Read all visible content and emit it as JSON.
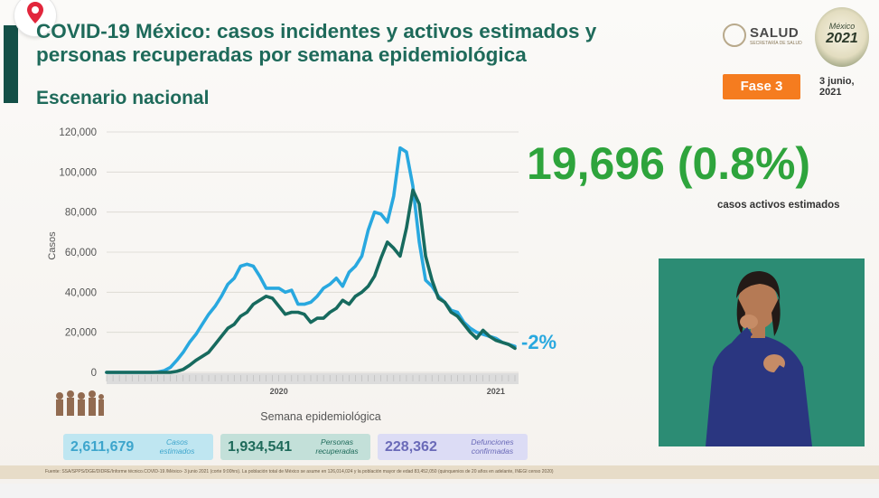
{
  "header": {
    "title": "COVID-19 México: casos incidentes y activos estimados y personas recuperadas por semana epidemiológica",
    "subtitle": "Escenario nacional",
    "org": "SALUD",
    "org_sub": "SECRETARÍA DE SALUD",
    "logo_top": "México",
    "logo_year": "2021",
    "phase": "Fase 3",
    "date": "3 junio, 2021"
  },
  "highlight": {
    "value": "19,696 (0.8%)",
    "label": "casos activos estimados"
  },
  "stats": [
    {
      "value": "2,611,679",
      "label": "Casos estimados",
      "color": "#bfe6f1",
      "text_color": "#3da5cc"
    },
    {
      "value": "1,934,541",
      "label": "Personas recuperadas",
      "color": "#c3e0d9",
      "text_color": "#1e6a5a"
    },
    {
      "value": "228,362",
      "label": "Defunciones confirmadas",
      "color": "#dcdcf5",
      "text_color": "#6a6ab8"
    }
  ],
  "footer": "Fuente: SSA/SPPS/DGE/DIDRE/Informe técnico.COVID-19 /México- 3 junio 2021 (corte 9:00hrs). La población total de México se asume en 126,014,024 y la población mayor de edad 83,452,050 (quinquenios de 20 años en adelante, INEGI censo 2020)",
  "chart_data": {
    "type": "line",
    "xlabel": "Semana epidemiológica",
    "ylabel": "Casos",
    "ylim": [
      0,
      120000
    ],
    "yticks": [
      "0",
      "20,000",
      "40,000",
      "60,000",
      "80,000",
      "100,000",
      "120,000"
    ],
    "xtick_labels": [
      {
        "label": "2020",
        "week": 27
      },
      {
        "label": "2021",
        "week": 61
      }
    ],
    "grid": true,
    "change_label": "-2%",
    "colors": {
      "estimated": "#29a8df",
      "recovered": "#176a5e"
    },
    "series": [
      {
        "key": "estimated",
        "values": [
          0,
          0,
          0,
          0,
          0,
          0,
          0,
          0,
          200,
          800,
          2500,
          6000,
          10000,
          15000,
          19000,
          24000,
          29000,
          33000,
          38000,
          44000,
          47000,
          53000,
          54000,
          53000,
          48000,
          42000,
          42000,
          42000,
          40000,
          41000,
          34000,
          34000,
          35000,
          38000,
          42000,
          44000,
          47000,
          43000,
          50000,
          53000,
          58000,
          71000,
          80000,
          79000,
          75000,
          88000,
          112000,
          110000,
          93000,
          65000,
          46000,
          43000,
          38000,
          35000,
          31000,
          30000,
          25000,
          22000,
          20000,
          19000,
          18000,
          17000,
          15000,
          14000,
          13000
        ]
      },
      {
        "key": "recovered",
        "values": [
          0,
          0,
          0,
          0,
          0,
          0,
          0,
          0,
          0,
          0,
          0,
          500,
          1500,
          3500,
          6000,
          8000,
          10000,
          14000,
          18000,
          22000,
          24000,
          28000,
          30000,
          34000,
          36000,
          38000,
          37000,
          33000,
          29000,
          30000,
          30000,
          29000,
          25000,
          27000,
          27000,
          30000,
          32000,
          36000,
          34000,
          38000,
          40000,
          43000,
          48000,
          57000,
          65000,
          62000,
          58000,
          72000,
          91000,
          84000,
          58000,
          46000,
          37000,
          35000,
          30000,
          28000,
          24000,
          20000,
          17000,
          21000,
          18000,
          16000,
          15000,
          14000,
          12000
        ]
      }
    ]
  }
}
